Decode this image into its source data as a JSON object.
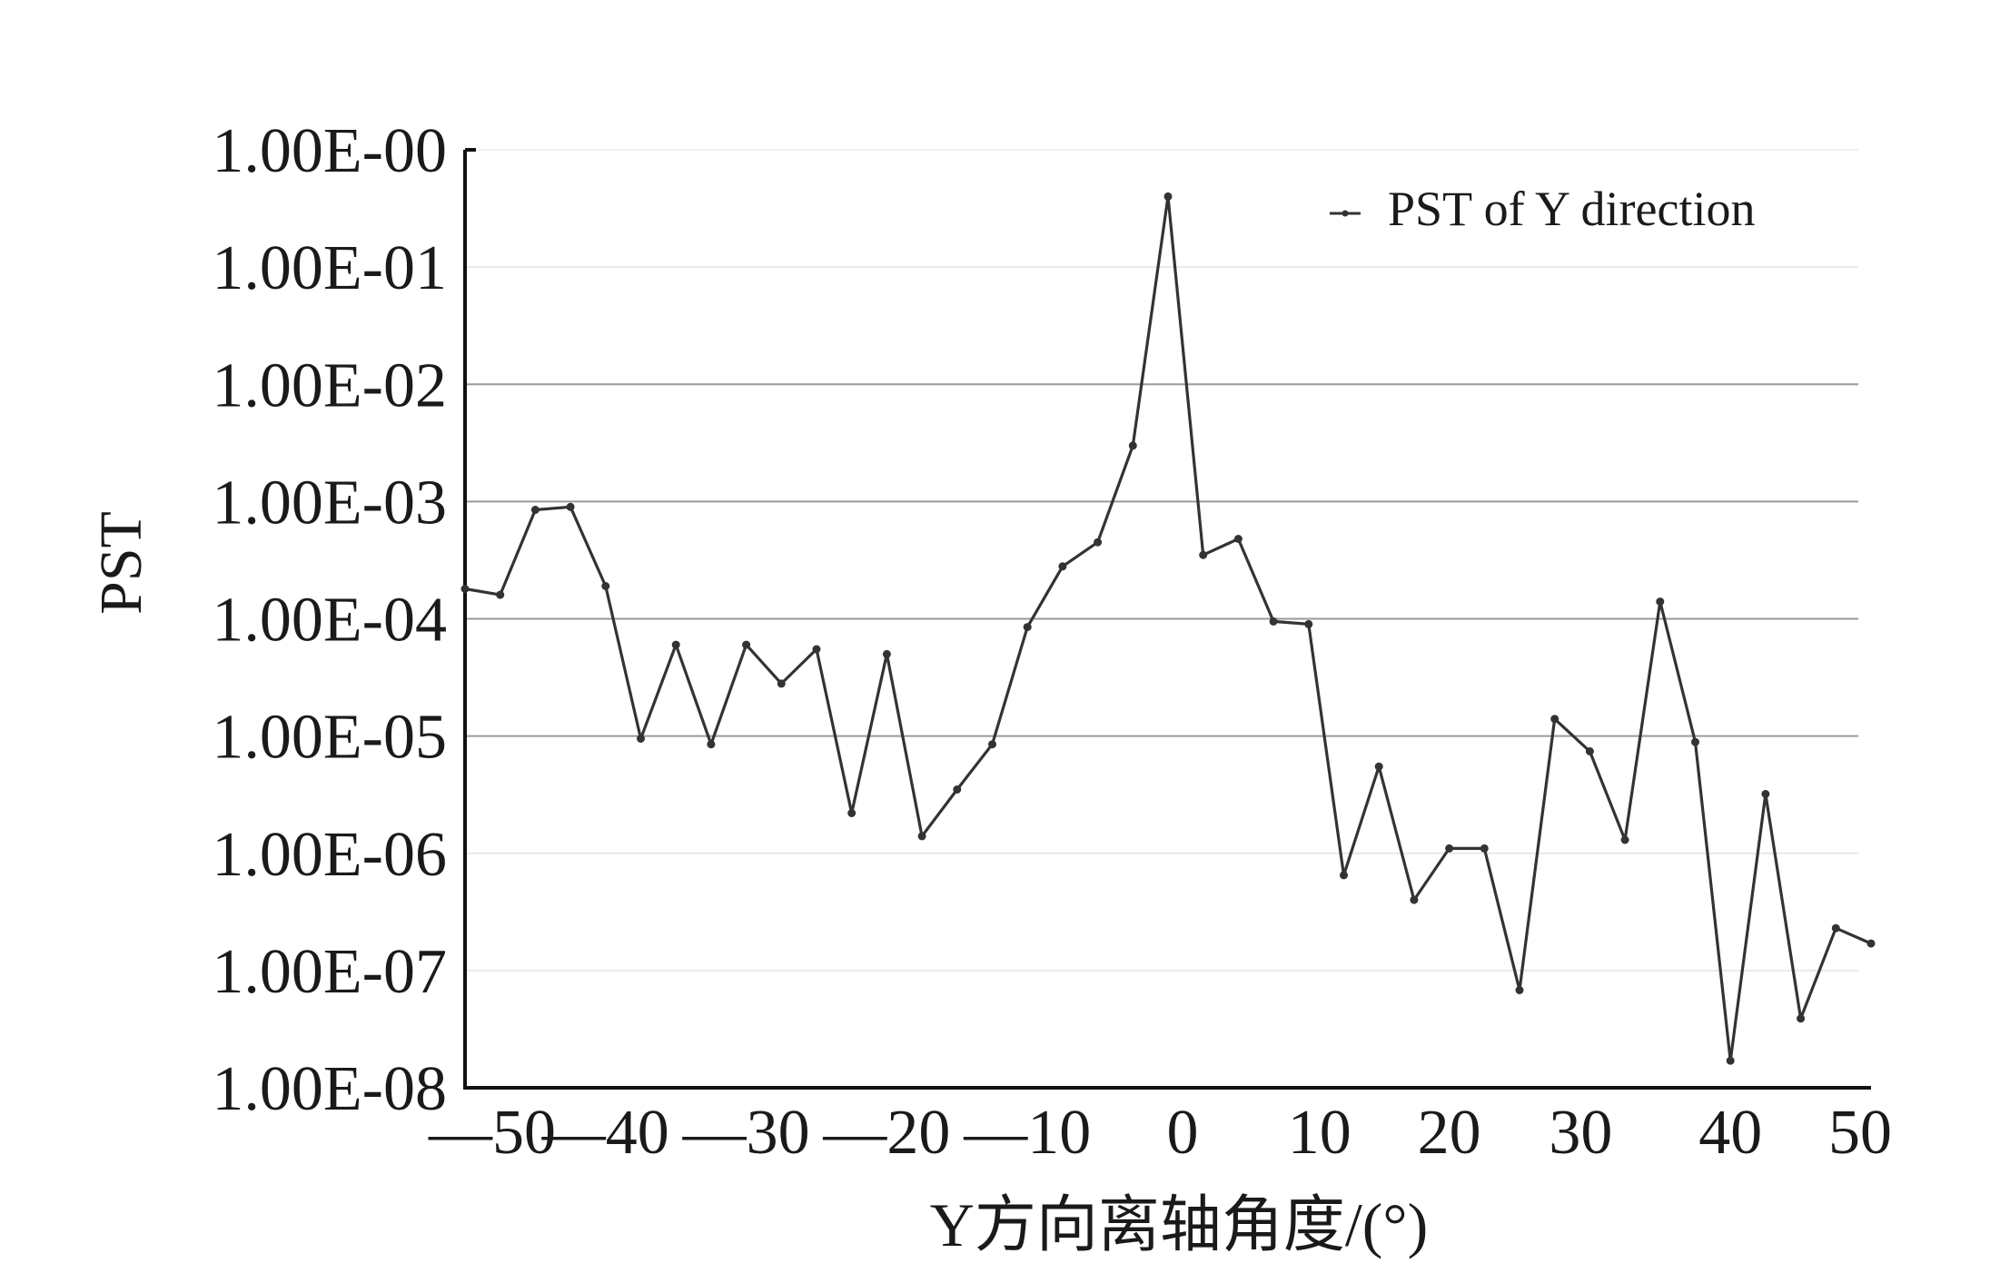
{
  "chart_data": {
    "type": "line",
    "title": "",
    "xlabel": "Y方向离轴角度/(°)",
    "ylabel": "PST",
    "legend": {
      "position": "top-right",
      "entries": [
        "PST of Y direction"
      ]
    },
    "xlim": [
      -50,
      50
    ],
    "ylim": [
      1e-08,
      1
    ],
    "yscale": "log",
    "grid": "horizontal",
    "x_ticks": [
      "—50",
      "—40",
      "—30",
      "—20",
      "—10",
      "0",
      "10",
      "20",
      "30",
      "40",
      "50"
    ],
    "x_tick_values": [
      -50,
      -40,
      -30,
      -20,
      -10,
      0,
      10,
      20,
      30,
      40,
      50
    ],
    "y_ticks": [
      "1.00E-00",
      "1.00E-01",
      "1.00E-02",
      "1.00E-03",
      "1.00E-04",
      "1.00E-05",
      "1.00E-06",
      "1.00E-07",
      "1.00E-08"
    ],
    "y_tick_values": [
      1,
      0.1,
      0.01,
      0.001,
      0.0001,
      1e-05,
      1e-06,
      1e-07,
      1e-08
    ],
    "series": [
      {
        "name": "PST of Y direction",
        "color": "#333333",
        "x": [
          -50,
          -47.5,
          -45,
          -42.5,
          -40,
          -37.5,
          -35,
          -32.5,
          -30,
          -27.5,
          -25,
          -22.5,
          -20,
          -17.5,
          -15,
          -12.5,
          -10,
          -7.5,
          -5,
          -2.5,
          0,
          2.5,
          5,
          7.5,
          10,
          12.5,
          15,
          17.5,
          20,
          22.5,
          25,
          27.5,
          30,
          32.5,
          35,
          37.5,
          40,
          42.5,
          45,
          47.5,
          50
        ],
        "y": [
          0.00018,
          0.00016,
          0.00085,
          0.0009,
          0.00019,
          9.5e-06,
          6e-05,
          8.5e-06,
          6e-05,
          2.8e-05,
          5.5e-05,
          2.2e-06,
          5e-05,
          1.4e-06,
          3.5e-06,
          8.5e-06,
          8.5e-05,
          0.00028,
          0.00045,
          0.003,
          0.4,
          0.00035,
          0.00048,
          9.5e-05,
          9e-05,
          6.5e-07,
          5.5e-06,
          4e-07,
          1.1e-06,
          1.1e-06,
          6.8e-08,
          1.4e-05,
          7.4e-06,
          1.3e-06,
          0.00014,
          8.9e-06,
          1.7e-08,
          3.2e-06,
          3.9e-08,
          2.3e-07,
          1.7e-07
        ]
      }
    ]
  }
}
